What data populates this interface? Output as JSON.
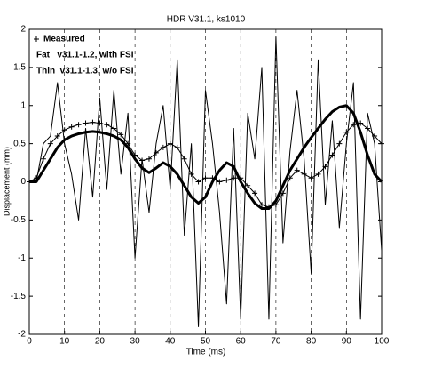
{
  "chart_data": {
    "type": "line",
    "title": "HDR V31.1, ks1010",
    "x_label": "Time (ms)",
    "y_label": "Displacement (mm)",
    "x": [
      0,
      2,
      4,
      6,
      8,
      10,
      12,
      14,
      16,
      18,
      20,
      22,
      24,
      26,
      28,
      30,
      32,
      34,
      36,
      38,
      40,
      42,
      44,
      46,
      48,
      50,
      52,
      54,
      56,
      58,
      60,
      62,
      64,
      66,
      68,
      70,
      72,
      74,
      76,
      78,
      80,
      82,
      84,
      86,
      88,
      90,
      92,
      94,
      96,
      98,
      100
    ],
    "series": [
      {
        "name": "Measured",
        "color": "#000000",
        "width": 1,
        "marker": "+",
        "values": [
          0,
          0.05,
          0.3,
          0.5,
          0.6,
          0.68,
          0.72,
          0.75,
          0.77,
          0.78,
          0.77,
          0.75,
          0.7,
          0.62,
          0.5,
          0.35,
          0.28,
          0.3,
          0.38,
          0.45,
          0.5,
          0.45,
          0.3,
          0.1,
          0,
          0.05,
          0.05,
          0,
          0.02,
          0.05,
          0.05,
          -0.05,
          -0.15,
          -0.3,
          -0.33,
          -0.3,
          -0.15,
          0.05,
          0.15,
          0.1,
          0.05,
          0.1,
          0.2,
          0.35,
          0.5,
          0.65,
          0.75,
          0.77,
          0.7,
          0.6,
          0.5
        ]
      },
      {
        "name": "Fat   v31.1-1.2, with FSI",
        "color": "#000000",
        "width": 3,
        "values": [
          0,
          0,
          0.15,
          0.3,
          0.45,
          0.55,
          0.6,
          0.63,
          0.65,
          0.66,
          0.65,
          0.63,
          0.6,
          0.55,
          0.45,
          0.3,
          0.18,
          0.12,
          0.18,
          0.25,
          0.2,
          0.1,
          -0.05,
          -0.2,
          -0.28,
          -0.2,
          0,
          0.15,
          0.25,
          0.2,
          0,
          -0.15,
          -0.28,
          -0.35,
          -0.35,
          -0.25,
          -0.05,
          0.15,
          0.3,
          0.45,
          0.58,
          0.7,
          0.82,
          0.92,
          0.98,
          1.0,
          0.9,
          0.65,
          0.35,
          0.1,
          0
        ]
      },
      {
        "name": "Thin  v31.1-1.3, w/o FSI",
        "color": "#000000",
        "width": 1,
        "values": [
          0,
          0,
          0.5,
          0.6,
          1.3,
          0.5,
          0.1,
          -0.5,
          0.7,
          -0.2,
          1.1,
          -0.1,
          1.2,
          0.1,
          0.9,
          -1,
          0.3,
          -0.4,
          0.5,
          1.0,
          -0.1,
          1.6,
          -0.7,
          0.5,
          -1.9,
          1.2,
          0.5,
          -0.4,
          -1.6,
          0.7,
          -1.8,
          0.9,
          0.3,
          1.5,
          -1.8,
          1.9,
          -0.8,
          0.4,
          1.2,
          0.3,
          -1.2,
          1.6,
          -0.3,
          0.8,
          -0.6,
          0.5,
          1.3,
          -1.8,
          0.9,
          0.5,
          -0.9
        ]
      }
    ],
    "xlim": [
      0,
      100
    ],
    "ylim": [
      -2,
      2
    ],
    "xticks": [
      0,
      10,
      20,
      30,
      40,
      50,
      60,
      70,
      80,
      90,
      100
    ],
    "yticks": [
      -2,
      -1.5,
      -1,
      -0.5,
      0,
      0.5,
      1,
      1.5,
      2
    ],
    "grid": "x",
    "legend": "upper left"
  }
}
